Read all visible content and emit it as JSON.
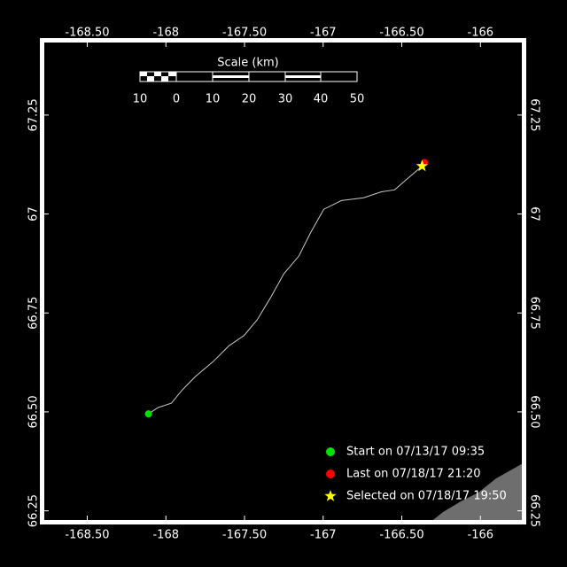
{
  "map": {
    "xlim": [
      -168.79,
      -165.72
    ],
    "ylim": [
      66.22,
      67.44
    ],
    "xticks": [
      {
        "value": -168.5,
        "label": "-168.50"
      },
      -168,
      {
        "value": -167.5,
        "label": "-167.50"
      },
      -167,
      {
        "value": -166.5,
        "label": "-166.50"
      },
      -166
    ],
    "yticks": [
      {
        "value": 66.25,
        "label": "66.25"
      },
      {
        "value": 66.5,
        "label": "66.50"
      },
      66.75,
      67,
      67.25
    ],
    "track": {
      "color": "#c8c8c8",
      "lon": [
        -168.111,
        -168.049,
        -167.965,
        -167.897,
        -167.813,
        -167.7,
        -167.599,
        -167.503,
        -167.419,
        -167.334,
        -167.25,
        -167.154,
        -167.081,
        -166.996,
        -166.884,
        -166.743,
        -166.63,
        -166.546,
        -166.462,
        -166.371,
        -166.355
      ],
      "lat": [
        66.495,
        66.511,
        66.522,
        66.555,
        66.589,
        66.627,
        66.667,
        66.693,
        66.733,
        66.789,
        66.849,
        66.894,
        66.952,
        67.012,
        67.034,
        67.041,
        67.056,
        67.061,
        67.09,
        67.121,
        67.13
      ]
    },
    "points": [
      {
        "label": "Start on 07/13/17 09:35",
        "lon": -168.111,
        "lat": 66.495,
        "color": "#00e000",
        "shape": "circle"
      },
      {
        "label": "Last on 07/18/17 21:20",
        "lon": -166.355,
        "lat": 67.13,
        "color": "#ff0000",
        "shape": "circle"
      },
      {
        "label": "Selected on 07/18/17 19:50",
        "lon": -166.371,
        "lat": 67.121,
        "color": "#ffff00",
        "shape": "star"
      }
    ]
  },
  "scale": {
    "title": "Scale (km)",
    "labels": [
      "10",
      "0",
      "10",
      "20",
      "30",
      "40",
      "50"
    ]
  }
}
